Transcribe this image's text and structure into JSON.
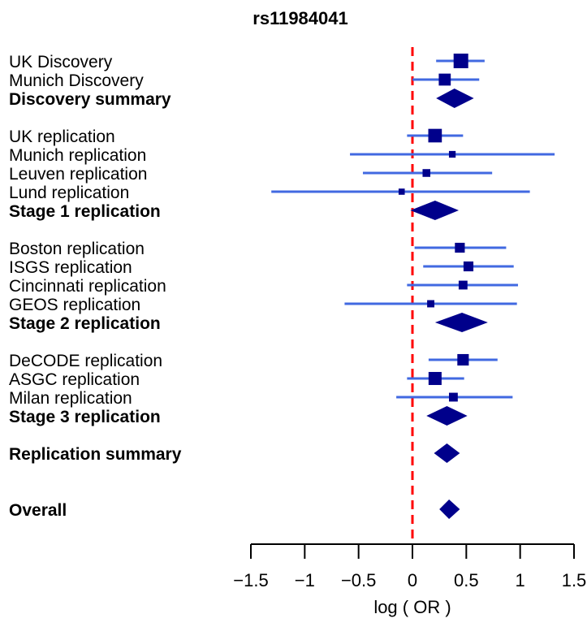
{
  "chart_data": {
    "type": "forest",
    "title": "rs11984041",
    "xlabel": "log ( OR )",
    "xlim": [
      -1.5,
      1.5
    ],
    "xticks": [
      -1.5,
      -1,
      -0.5,
      0,
      0.5,
      1,
      1.5
    ],
    "xtick_labels": [
      "−1.5",
      "−1",
      "−0.5",
      "0",
      "0.5",
      "1",
      "1.5"
    ],
    "reference_line": 0,
    "colors": {
      "ci_line": "#4169e1",
      "marker": "#00008b",
      "reference": "#ff0000"
    },
    "rows": [
      {
        "label": "UK Discovery",
        "kind": "study",
        "est": 0.45,
        "lo": 0.22,
        "hi": 0.67,
        "weight": 1.0
      },
      {
        "label": "Munich Discovery",
        "kind": "study",
        "est": 0.3,
        "lo": 0.0,
        "hi": 0.62,
        "weight": 0.75
      },
      {
        "label": "Discovery summary",
        "kind": "summary",
        "est": 0.39,
        "lo": 0.22,
        "hi": 0.57
      },
      {
        "label": "",
        "kind": "gap"
      },
      {
        "label": "UK replication",
        "kind": "study",
        "est": 0.21,
        "lo": -0.05,
        "hi": 0.47,
        "weight": 0.9
      },
      {
        "label": "Munich replication",
        "kind": "study",
        "est": 0.37,
        "lo": -0.58,
        "hi": 1.32,
        "weight": 0.25
      },
      {
        "label": "Leuven replication",
        "kind": "study",
        "est": 0.13,
        "lo": -0.46,
        "hi": 0.74,
        "weight": 0.35
      },
      {
        "label": "Lund replication",
        "kind": "study",
        "est": -0.1,
        "lo": -1.31,
        "hi": 1.09,
        "weight": 0.2
      },
      {
        "label": "Stage 1 replication",
        "kind": "summary",
        "est": 0.21,
        "lo": -0.02,
        "hi": 0.43
      },
      {
        "label": "",
        "kind": "gap"
      },
      {
        "label": "Boston replication",
        "kind": "study",
        "est": 0.44,
        "lo": 0.02,
        "hi": 0.87,
        "weight": 0.55
      },
      {
        "label": "ISGS replication",
        "kind": "study",
        "est": 0.52,
        "lo": 0.1,
        "hi": 0.94,
        "weight": 0.55
      },
      {
        "label": "Cincinnati replication",
        "kind": "study",
        "est": 0.47,
        "lo": -0.05,
        "hi": 0.98,
        "weight": 0.45
      },
      {
        "label": "GEOS replication",
        "kind": "study",
        "est": 0.17,
        "lo": -0.63,
        "hi": 0.97,
        "weight": 0.3
      },
      {
        "label": "Stage 2 replication",
        "kind": "summary",
        "est": 0.46,
        "lo": 0.21,
        "hi": 0.7
      },
      {
        "label": "",
        "kind": "gap"
      },
      {
        "label": "DeCODE replication",
        "kind": "study",
        "est": 0.47,
        "lo": 0.15,
        "hi": 0.79,
        "weight": 0.7
      },
      {
        "label": "ASGC replication",
        "kind": "study",
        "est": 0.21,
        "lo": -0.05,
        "hi": 0.48,
        "weight": 0.85
      },
      {
        "label": "Milan replication",
        "kind": "study",
        "est": 0.38,
        "lo": -0.15,
        "hi": 0.93,
        "weight": 0.45
      },
      {
        "label": "Stage 3 replication",
        "kind": "summary",
        "est": 0.32,
        "lo": 0.13,
        "hi": 0.51
      },
      {
        "label": "",
        "kind": "gap"
      },
      {
        "label": "Replication summary",
        "kind": "summary",
        "est": 0.32,
        "lo": 0.2,
        "hi": 0.44
      },
      {
        "label": "",
        "kind": "gap"
      },
      {
        "label": "",
        "kind": "gap"
      },
      {
        "label": "Overall",
        "kind": "summary",
        "est": 0.34,
        "lo": 0.25,
        "hi": 0.44
      }
    ]
  }
}
